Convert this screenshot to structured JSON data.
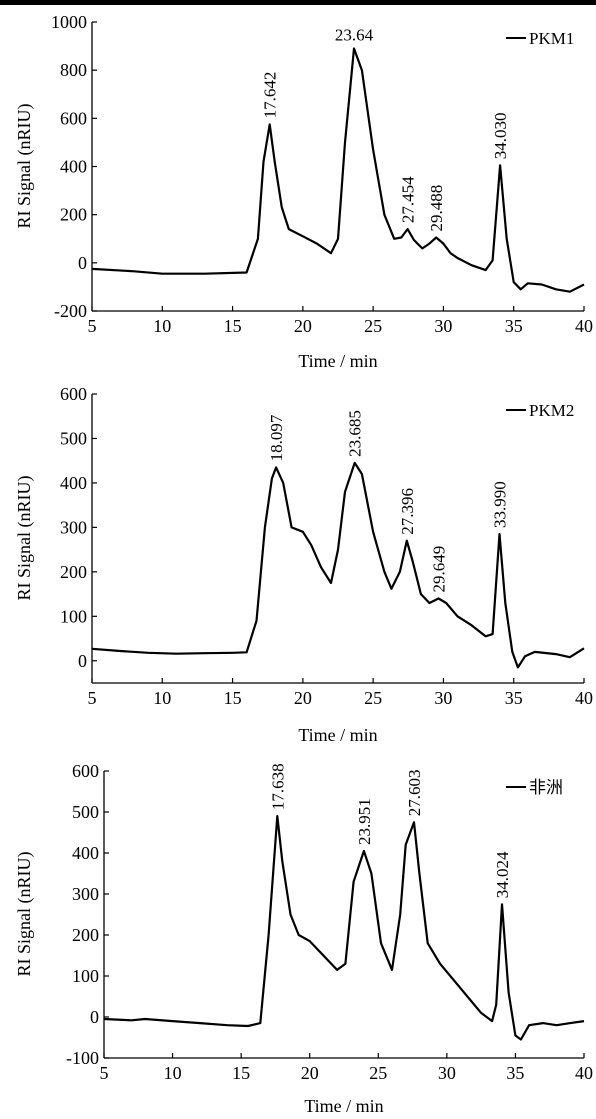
{
  "chart_data": [
    {
      "type": "line",
      "xlabel": "Time / min",
      "ylabel": "RI Signal (nRIU)",
      "xlim": [
        5,
        40
      ],
      "ylim": [
        -200,
        1000
      ],
      "xticks": [
        5,
        10,
        15,
        20,
        25,
        30,
        35,
        40
      ],
      "yticks": [
        -200,
        0,
        200,
        400,
        600,
        800,
        1000
      ],
      "legend": "top-right",
      "series": [
        {
          "name": "PKM1",
          "x": [
            5,
            8,
            10,
            13,
            16,
            16.8,
            17.2,
            17.642,
            18.0,
            18.5,
            19.0,
            20.0,
            21.0,
            22.0,
            22.5,
            23.0,
            23.64,
            24.2,
            25.0,
            25.8,
            26.5,
            27.0,
            27.454,
            27.9,
            28.5,
            29.0,
            29.488,
            30.0,
            30.5,
            31.0,
            32.0,
            33.0,
            33.5,
            34.03,
            34.5,
            35.0,
            35.5,
            36.0,
            37.0,
            38.0,
            39.0,
            40.0
          ],
          "values": [
            -25,
            -35,
            -45,
            -45,
            -40,
            100,
            420,
            575,
            420,
            230,
            140,
            110,
            80,
            40,
            100,
            500,
            890,
            800,
            470,
            200,
            100,
            105,
            140,
            95,
            60,
            80,
            105,
            80,
            40,
            20,
            -10,
            -30,
            10,
            405,
            100,
            -80,
            -110,
            -85,
            -90,
            -110,
            -120,
            -90
          ]
        }
      ],
      "annotations": [
        {
          "x": 17.642,
          "y": 575,
          "text": "17.642",
          "rot": true
        },
        {
          "x": 23.64,
          "y": 890,
          "text": "23.64",
          "rot": false
        },
        {
          "x": 27.454,
          "y": 140,
          "text": "27.454",
          "rot": true
        },
        {
          "x": 29.488,
          "y": 105,
          "text": "29.488",
          "rot": true
        },
        {
          "x": 34.03,
          "y": 405,
          "text": "34.030",
          "rot": true
        }
      ]
    },
    {
      "type": "line",
      "xlabel": "Time / min",
      "ylabel": "RI Signal (nRIU)",
      "xlim": [
        5,
        40
      ],
      "ylim": [
        -50,
        600
      ],
      "xticks": [
        5,
        10,
        15,
        20,
        25,
        30,
        35,
        40
      ],
      "yticks": [
        0,
        100,
        200,
        300,
        400,
        500,
        600
      ],
      "legend": "top-right",
      "series": [
        {
          "name": "PKM2",
          "x": [
            5,
            7,
            9,
            11,
            13,
            15,
            16.0,
            16.7,
            17.3,
            17.8,
            18.097,
            18.6,
            19.2,
            20.0,
            20.6,
            21.3,
            22.0,
            22.5,
            23.0,
            23.685,
            24.2,
            25.0,
            25.8,
            26.3,
            26.9,
            27.396,
            27.8,
            28.4,
            29.0,
            29.649,
            30.2,
            31.0,
            32.0,
            33.0,
            33.5,
            33.99,
            34.4,
            34.9,
            35.3,
            35.8,
            36.5,
            38.0,
            39.0,
            40.0
          ],
          "values": [
            27,
            22,
            18,
            16,
            17,
            18,
            19,
            90,
            300,
            410,
            435,
            400,
            300,
            290,
            260,
            210,
            175,
            250,
            380,
            445,
            420,
            290,
            200,
            162,
            200,
            270,
            225,
            150,
            130,
            140,
            130,
            100,
            80,
            55,
            60,
            285,
            130,
            20,
            -15,
            10,
            20,
            15,
            8,
            28
          ]
        }
      ],
      "annotations": [
        {
          "x": 18.097,
          "y": 435,
          "text": "18.097",
          "rot": true
        },
        {
          "x": 23.685,
          "y": 445,
          "text": "23.685",
          "rot": true
        },
        {
          "x": 27.396,
          "y": 270,
          "text": "27.396",
          "rot": true
        },
        {
          "x": 29.649,
          "y": 140,
          "text": "29.649",
          "rot": true
        },
        {
          "x": 33.99,
          "y": 285,
          "text": "33.990",
          "rot": true
        }
      ]
    },
    {
      "type": "line",
      "xlabel": "Time / min",
      "ylabel": "RI Signal (nRIU)",
      "xlim": [
        5,
        40
      ],
      "ylim": [
        -100,
        600
      ],
      "xticks": [
        5,
        10,
        15,
        20,
        25,
        30,
        35,
        40
      ],
      "yticks": [
        -100,
        0,
        100,
        200,
        300,
        400,
        500,
        600
      ],
      "legend": "top-right",
      "series": [
        {
          "name": "非洲",
          "x": [
            5,
            7,
            8,
            10,
            12,
            14,
            15.5,
            16.4,
            17.0,
            17.638,
            18.0,
            18.6,
            19.2,
            20.0,
            21.0,
            22.0,
            22.6,
            23.2,
            23.951,
            24.5,
            25.2,
            26.0,
            26.6,
            27.0,
            27.603,
            28.0,
            28.6,
            29.5,
            30.5,
            31.5,
            32.5,
            33.3,
            33.6,
            34.024,
            34.5,
            35.0,
            35.4,
            36.0,
            37.0,
            38.0,
            39.0,
            40.0
          ],
          "values": [
            -5,
            -8,
            -5,
            -10,
            -15,
            -20,
            -22,
            -15,
            200,
            490,
            380,
            250,
            200,
            185,
            150,
            115,
            130,
            330,
            405,
            350,
            180,
            115,
            250,
            420,
            475,
            350,
            180,
            130,
            90,
            50,
            10,
            -10,
            30,
            275,
            60,
            -45,
            -55,
            -20,
            -15,
            -20,
            -15,
            -10
          ]
        }
      ],
      "annotations": [
        {
          "x": 17.638,
          "y": 490,
          "text": "17.638",
          "rot": true
        },
        {
          "x": 23.951,
          "y": 405,
          "text": "23.951",
          "rot": true
        },
        {
          "x": 27.603,
          "y": 475,
          "text": "27.603",
          "rot": true
        },
        {
          "x": 34.024,
          "y": 275,
          "text": "34.024",
          "rot": true
        }
      ]
    }
  ]
}
